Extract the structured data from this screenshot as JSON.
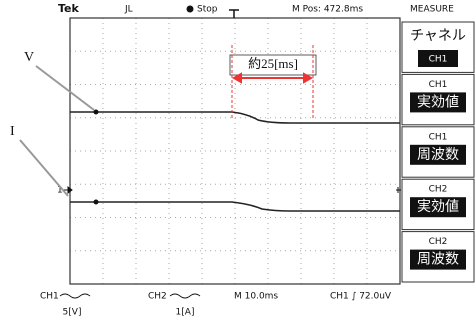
{
  "header": {
    "brand": "Tek",
    "trigger_mode": "JL",
    "status": "Stop",
    "position": "M Pos: 472.8ms",
    "menu_title": "MEASURE"
  },
  "menu": [
    {
      "label": "チャネル",
      "value": "CH1"
    },
    {
      "channel": "CH1",
      "label": "実効値"
    },
    {
      "channel": "CH1",
      "label": "周波数"
    },
    {
      "channel": "CH2",
      "label": "実効値"
    },
    {
      "channel": "CH2",
      "label": "周波数"
    }
  ],
  "annotations": {
    "v_label": "V",
    "i_label": "I",
    "interval": "約25[ms]",
    "ch1_marker": "1"
  },
  "footer": {
    "ch1": "CH1",
    "ch1_unit": "5[V]",
    "ch2": "CH2",
    "ch2_unit": "1[A]",
    "timebase": "M 10.0ms",
    "trigger": "CH1 ∫ 72.0uV"
  }
}
